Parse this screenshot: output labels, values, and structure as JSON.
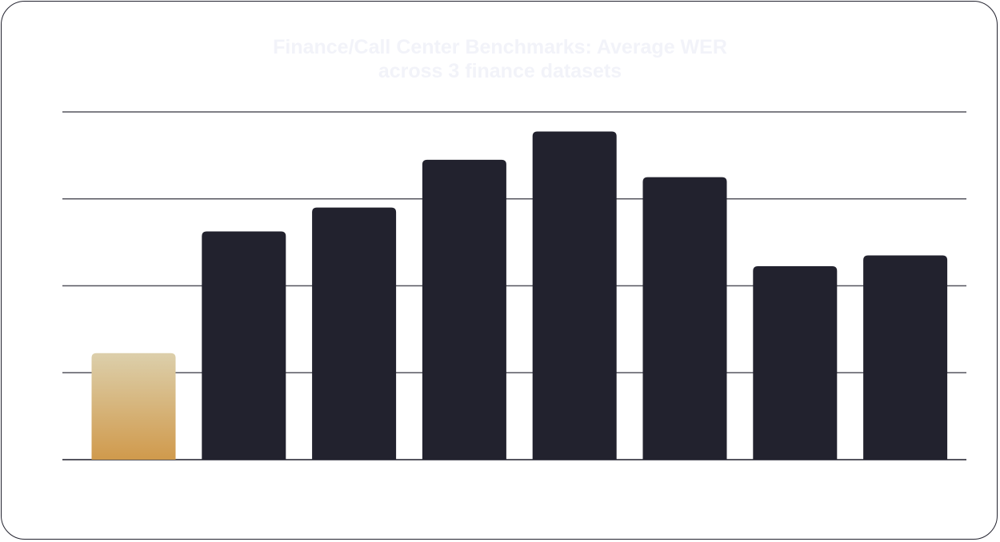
{
  "chart_data": {
    "type": "bar",
    "title": "Finance/Call Center Benchmarks: Average WER across 3 finance datasets",
    "xlabel": "",
    "ylabel": "",
    "categories": [
      "",
      "",
      "",
      "",
      "",
      "",
      "",
      ""
    ],
    "values": [
      4.9,
      10.5,
      11.6,
      13.8,
      15.1,
      13.0,
      8.9,
      9.4
    ],
    "ylim": [
      0,
      16
    ],
    "grid": true,
    "legend": "none",
    "highlight_index": 0,
    "colors": {
      "highlight_top": "#dccfab",
      "highlight_bottom": "#d09a4c",
      "bar": "#22222e",
      "grid": "#55555f",
      "frame": "#23232f",
      "title": "#f2f3f9"
    }
  }
}
